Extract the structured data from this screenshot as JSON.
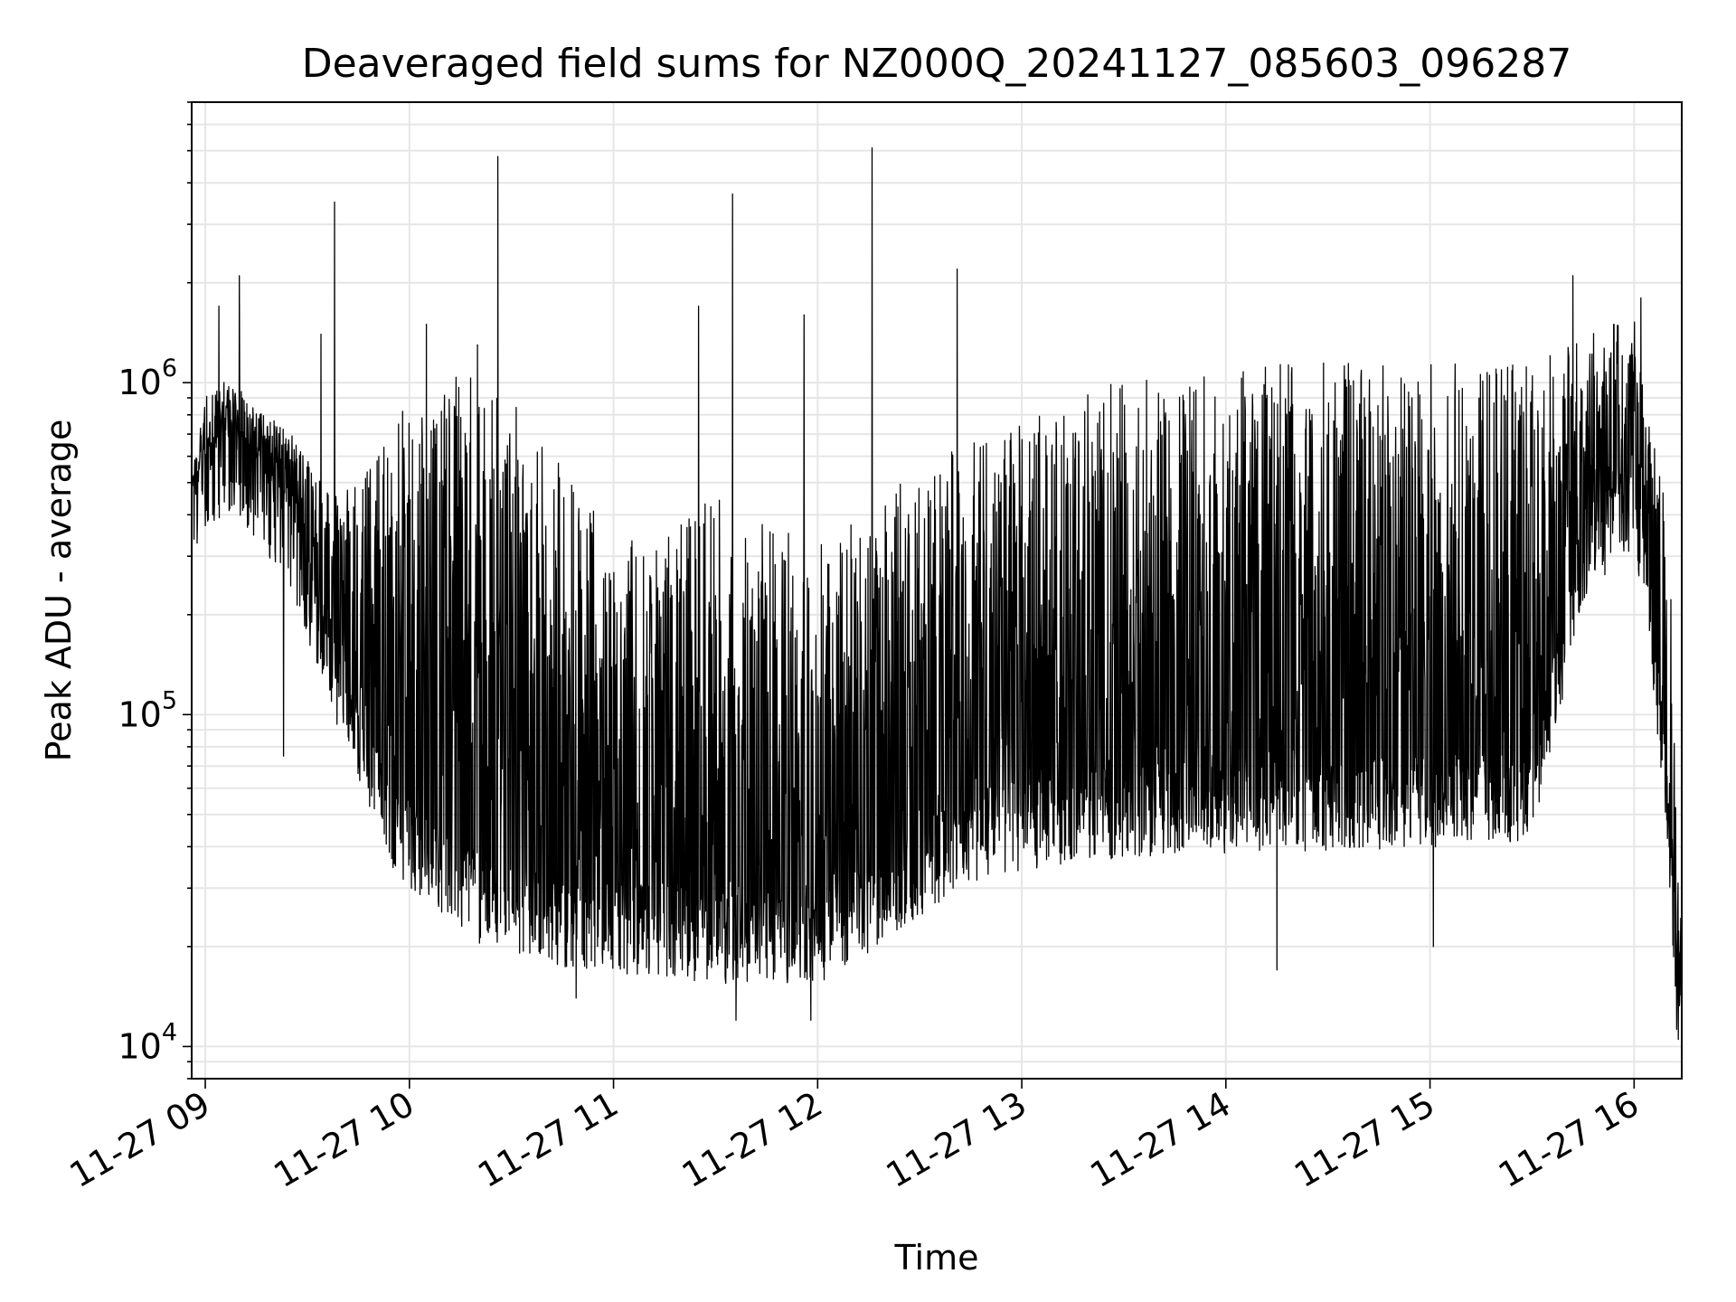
{
  "chart_data": {
    "type": "line",
    "title": "Deaveraged field sums for NZ000Q_20241127_085603_096287",
    "xlabel": "Time",
    "ylabel": "Peak ADU - average",
    "yscale": "log",
    "ylim": [
      8000,
      7000000
    ],
    "xlim": [
      "2024-11-27 08:56",
      "2024-11-27 16:14"
    ],
    "grid": true,
    "legend": "none",
    "colors": {
      "line": "#000000",
      "grid": "#e6e6e6",
      "axes": "#000000"
    },
    "x_ticks": [
      "11-27 09",
      "11-27 10",
      "11-27 11",
      "11-27 12",
      "11-27 13",
      "11-27 14",
      "11-27 15",
      "11-27 16"
    ],
    "y_ticks": [
      {
        "base": "10",
        "exp": "4",
        "value": 10000
      },
      {
        "base": "10",
        "exp": "5",
        "value": 100000
      },
      {
        "base": "10",
        "exp": "6",
        "value": 1000000
      }
    ],
    "series": [
      {
        "x": [
          "2024-11-27 08:56",
          "2024-11-27 09:00",
          "2024-11-27 09:06",
          "2024-11-27 09:12",
          "2024-11-27 09:18",
          "2024-11-27 09:24",
          "2024-11-27 09:30",
          "2024-11-27 09:36",
          "2024-11-27 09:42",
          "2024-11-27 09:48",
          "2024-11-27 09:54",
          "2024-11-27 10:00",
          "2024-11-27 10:10",
          "2024-11-27 10:20",
          "2024-11-27 10:30",
          "2024-11-27 10:45",
          "2024-11-27 11:00",
          "2024-11-27 11:15",
          "2024-11-27 11:30",
          "2024-11-27 11:45",
          "2024-11-27 12:00",
          "2024-11-27 12:15",
          "2024-11-27 12:30",
          "2024-11-27 12:45",
          "2024-11-27 13:00",
          "2024-11-27 13:30",
          "2024-11-27 14:00",
          "2024-11-27 14:30",
          "2024-11-27 15:00",
          "2024-11-27 15:30",
          "2024-11-27 15:45",
          "2024-11-27 16:00",
          "2024-11-27 16:04",
          "2024-11-27 16:08",
          "2024-11-27 16:11",
          "2024-11-27 16:13"
        ],
        "baseline": [
          480000,
          600000,
          650000,
          600000,
          480000,
          420000,
          280000,
          170000,
          130000,
          85000,
          58000,
          48000,
          40000,
          33000,
          30000,
          28000,
          27000,
          26000,
          25000,
          25000,
          25000,
          30000,
          40000,
          50000,
          55000,
          60000,
          62000,
          63000,
          64000,
          68000,
          350000,
          500000,
          300000,
          100000,
          40000,
          14000
        ],
        "peak": [
          500000,
          900000,
          1000000,
          900000,
          800000,
          700000,
          600000,
          500000,
          450000,
          500000,
          600000,
          900000,
          1000000,
          900000,
          800000,
          500000,
          300000,
          300000,
          400000,
          350000,
          300000,
          350000,
          500000,
          600000,
          700000,
          900000,
          1000000,
          1000000,
          1000000,
          1000000,
          1300000,
          1500000,
          800000,
          500000,
          250000,
          30000
        ],
        "spikes": [
          {
            "x": "2024-11-27 09:04",
            "y": 1700000
          },
          {
            "x": "2024-11-27 09:10",
            "y": 2100000
          },
          {
            "x": "2024-11-27 09:34",
            "y": 1400000
          },
          {
            "x": "2024-11-27 09:38",
            "y": 3500000
          },
          {
            "x": "2024-11-27 10:05",
            "y": 1500000
          },
          {
            "x": "2024-11-27 10:20",
            "y": 1300000
          },
          {
            "x": "2024-11-27 10:26",
            "y": 4800000
          },
          {
            "x": "2024-11-27 11:25",
            "y": 1700000
          },
          {
            "x": "2024-11-27 11:35",
            "y": 3700000
          },
          {
            "x": "2024-11-27 11:56",
            "y": 1600000
          },
          {
            "x": "2024-11-27 12:16",
            "y": 5100000
          },
          {
            "x": "2024-11-27 12:41",
            "y": 2200000
          },
          {
            "x": "2024-11-27 15:42",
            "y": 2100000
          },
          {
            "x": "2024-11-27 16:02",
            "y": 1800000
          }
        ],
        "dips": [
          {
            "x": "2024-11-27 09:23",
            "y": 75000
          },
          {
            "x": "2024-11-27 10:49",
            "y": 14000
          },
          {
            "x": "2024-11-27 11:36",
            "y": 12000
          },
          {
            "x": "2024-11-27 11:58",
            "y": 12000
          },
          {
            "x": "2024-11-27 14:15",
            "y": 17000
          },
          {
            "x": "2024-11-27 15:01",
            "y": 20000
          },
          {
            "x": "2024-11-27 16:13",
            "y": 10500
          }
        ]
      }
    ]
  }
}
